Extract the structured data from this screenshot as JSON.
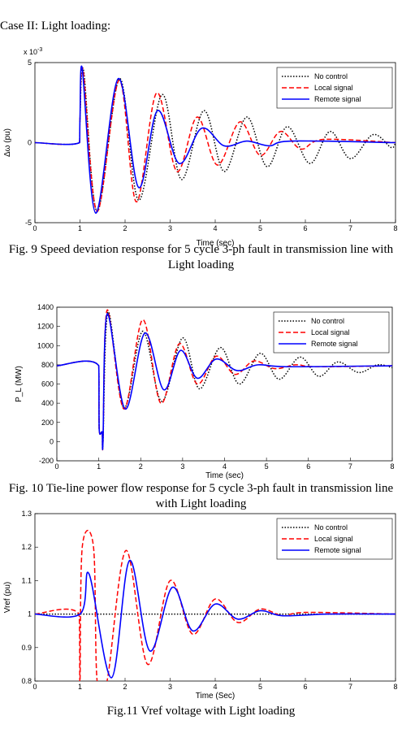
{
  "section_title": "Case II: Light loading:",
  "chart_data": [
    {
      "type": "line",
      "caption": "Fig. 9 Speed deviation response for 5 cycle 3-ph fault in transmission line with Light loading",
      "xlabel": "Time (sec)",
      "ylabel": "Δω (pu)",
      "y_scale_label": {
        "base": "x 10",
        "exponent": "-3"
      },
      "xlim": [
        0,
        8
      ],
      "xticks": [
        0,
        1,
        2,
        3,
        4,
        5,
        6,
        7,
        8
      ],
      "ylim": [
        -5,
        5
      ],
      "yticks": [
        -5,
        0,
        5
      ],
      "legend": "upper right",
      "series": [
        {
          "name": "No control",
          "color": "#000000",
          "style": "dotted",
          "x": [
            0,
            0.99,
            1.0,
            1.08,
            1.38,
            1.88,
            2.3,
            2.82,
            3.25,
            3.75,
            4.2,
            4.7,
            5.15,
            5.6,
            6.1,
            6.55,
            7.0,
            7.5,
            7.9,
            8
          ],
          "values": [
            0,
            0,
            1.5,
            4.5,
            -4.3,
            4.0,
            -3.6,
            3.0,
            -2.3,
            2.0,
            -1.8,
            1.6,
            -1.5,
            1.0,
            -1.3,
            0.7,
            -1.0,
            0.5,
            -0.3,
            0
          ]
        },
        {
          "name": "Local signal",
          "color": "#ff0000",
          "style": "dashed",
          "x": [
            0,
            0.99,
            1.0,
            1.07,
            1.38,
            1.87,
            2.25,
            2.7,
            3.15,
            3.6,
            4.05,
            4.55,
            5.0,
            5.45,
            5.9,
            6.4,
            8
          ],
          "values": [
            0,
            0,
            1.5,
            4.5,
            -4.3,
            3.9,
            -3.7,
            3.1,
            -1.8,
            1.6,
            -1.4,
            1.3,
            -0.8,
            0.7,
            -0.4,
            0.2,
            0
          ]
        },
        {
          "name": "Remote signal",
          "color": "#0000ff",
          "style": "solid",
          "x": [
            0,
            0.99,
            1.0,
            1.05,
            1.35,
            1.85,
            2.3,
            2.72,
            3.2,
            3.7,
            4.2,
            4.7,
            5.2,
            5.7,
            8
          ],
          "values": [
            0,
            0,
            1.5,
            4.6,
            -4.4,
            4.0,
            -2.8,
            2.0,
            -1.3,
            0.9,
            -0.2,
            0.1,
            -0.2,
            0.1,
            0
          ]
        }
      ]
    },
    {
      "type": "line",
      "caption": "Fig. 10 Tie-line power flow response for 5 cycle 3-ph fault in transmission line with Light loading",
      "xlabel": "Time (sec)",
      "ylabel": "P_L (MW)",
      "xlim": [
        0,
        8
      ],
      "xticks": [
        0,
        1,
        2,
        3,
        4,
        5,
        6,
        7,
        8
      ],
      "ylim": [
        -200,
        1400
      ],
      "yticks": [
        -200,
        0,
        200,
        400,
        600,
        800,
        1000,
        1200,
        1400
      ],
      "legend": "upper right",
      "series": [
        {
          "name": "No control",
          "color": "#000000",
          "style": "dotted",
          "x": [
            0,
            1.0,
            1.01,
            1.08,
            1.1,
            1.22,
            1.6,
            2.05,
            2.5,
            3.0,
            3.4,
            3.9,
            4.35,
            4.85,
            5.3,
            5.8,
            6.25,
            6.7,
            7.2,
            7.65,
            8
          ],
          "values": [
            790,
            790,
            130,
            100,
            -10,
            1350,
            350,
            1150,
            420,
            1080,
            550,
            980,
            600,
            920,
            650,
            880,
            680,
            830,
            720,
            800,
            770
          ]
        },
        {
          "name": "Local signal",
          "color": "#ff0000",
          "style": "dashed",
          "x": [
            0,
            1.0,
            1.01,
            1.08,
            1.1,
            1.2,
            1.6,
            2.05,
            2.48,
            2.92,
            3.35,
            3.8,
            4.25,
            4.7,
            5.2,
            5.7,
            6.2,
            8
          ],
          "values": [
            790,
            790,
            130,
            100,
            -10,
            1370,
            340,
            1270,
            400,
            1020,
            600,
            890,
            700,
            840,
            760,
            800,
            780,
            790
          ]
        },
        {
          "name": "Remote signal",
          "color": "#0000ff",
          "style": "solid",
          "x": [
            0,
            1.0,
            1.01,
            1.08,
            1.1,
            1.2,
            1.63,
            2.1,
            2.55,
            2.95,
            3.35,
            3.8,
            4.3,
            4.8,
            5.5,
            8
          ],
          "values": [
            790,
            790,
            130,
            100,
            -10,
            1330,
            340,
            1130,
            540,
            950,
            660,
            860,
            740,
            800,
            780,
            790
          ]
        }
      ]
    },
    {
      "type": "line",
      "caption": "Fig.11 Vref voltage with Light loading",
      "xlabel": "Time (Sec)",
      "ylabel": "Vref (pu)",
      "xlim": [
        0,
        8
      ],
      "xticks": [
        0,
        1,
        2,
        3,
        4,
        5,
        6,
        7,
        8
      ],
      "ylim": [
        0.8,
        1.3
      ],
      "yticks": [
        0.8,
        0.9,
        1,
        1.1,
        1.2,
        1.3
      ],
      "legend": "upper right",
      "series": [
        {
          "name": "No control",
          "color": "#000000",
          "style": "dotted",
          "x": [
            0,
            8
          ],
          "values": [
            1,
            1
          ]
        },
        {
          "name": "Local signal",
          "color": "#ff0000",
          "style": "dashed",
          "x": [
            0,
            0.98,
            1.0,
            1.05,
            1.3,
            1.38,
            1.6,
            2.02,
            2.5,
            3.0,
            3.5,
            4.0,
            4.5,
            5.0,
            5.5,
            6.0,
            8
          ],
          "values": [
            1,
            1,
            0.8,
            1.2,
            1.2,
            0.8,
            0.8,
            1.19,
            0.85,
            1.1,
            0.94,
            1.045,
            0.975,
            1.015,
            0.995,
            1.005,
            1
          ]
        },
        {
          "name": "Remote signal",
          "color": "#0000ff",
          "style": "solid",
          "x": [
            0,
            1.0,
            1.2,
            1.7,
            2.1,
            2.55,
            3.05,
            3.5,
            4.0,
            4.5,
            5.0,
            5.5,
            6.5,
            8
          ],
          "values": [
            1,
            1,
            1.12,
            0.81,
            1.16,
            0.89,
            1.08,
            0.95,
            1.03,
            0.985,
            1.01,
            0.995,
            1,
            1
          ]
        }
      ]
    }
  ]
}
